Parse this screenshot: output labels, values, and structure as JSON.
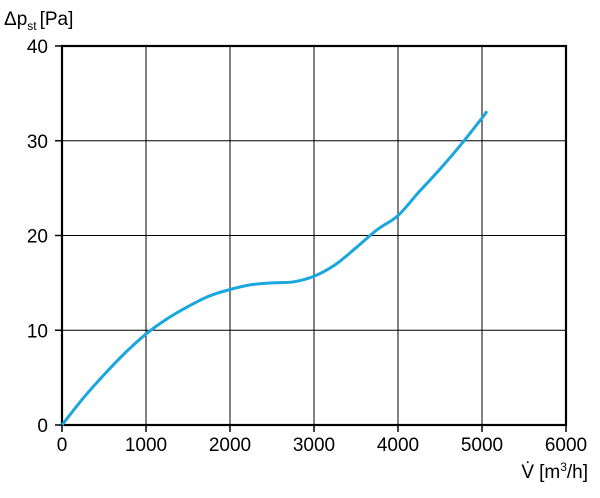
{
  "chart_data": {
    "type": "line",
    "title": "",
    "ylabel": {
      "prefix": "Δp",
      "subscript": "st",
      "unit": "[Pa]"
    },
    "xlabel": {
      "symbol": "V̇",
      "unit_prefix": "[m",
      "unit_superscript": "3",
      "unit_suffix": "/h]"
    },
    "xlim": [
      0,
      6000
    ],
    "ylim": [
      0,
      40
    ],
    "xticks": [
      0,
      1000,
      2000,
      3000,
      4000,
      5000,
      6000
    ],
    "yticks": [
      0,
      10,
      20,
      30,
      40
    ],
    "grid": true,
    "legend": "none",
    "series": [
      {
        "color": "#1aa6df",
        "x": [
          0,
          250,
          500,
          750,
          1000,
          1250,
          1500,
          1750,
          2000,
          2250,
          2500,
          2750,
          3000,
          3250,
          3500,
          3750,
          4000,
          4250,
          4500,
          4750,
          5000,
          5050
        ],
        "y": [
          0,
          2.8,
          5.3,
          7.6,
          9.6,
          11.2,
          12.5,
          13.6,
          14.3,
          14.8,
          15.0,
          15.1,
          15.7,
          16.9,
          18.7,
          20.6,
          22.1,
          24.6,
          27.0,
          29.6,
          32.4,
          33.0
        ]
      }
    ]
  }
}
